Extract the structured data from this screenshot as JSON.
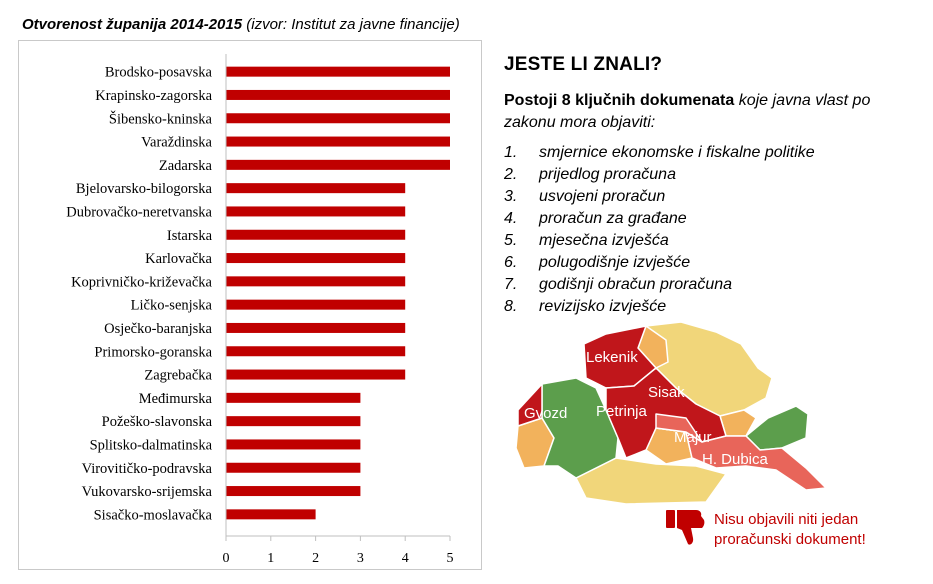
{
  "header": {
    "title": "Otvorenost županija 2014-2015",
    "source": "(izvor: Institut za javne financije)"
  },
  "chart_data": {
    "type": "bar",
    "orientation": "horizontal",
    "categories": [
      "Brodsko-posavska",
      "Krapinsko-zagorska",
      "Šibensko-kninska",
      "Varaždinska",
      "Zadarska",
      "Bjelovarsko-bilogorska",
      "Dubrovačko-neretvanska",
      "Istarska",
      "Karlovačka",
      "Koprivničko-križevačka",
      "Ličko-senjska",
      "Osječko-baranjska",
      "Primorsko-goranska",
      "Zagrebačka",
      "Međimurska",
      "Požeško-slavonska",
      "Splitsko-dalmatinska",
      "Virovitičko-podravska",
      "Vukovarsko-srijemska",
      "Sisačko-moslavačka"
    ],
    "values": [
      5,
      5,
      5,
      5,
      5,
      4,
      4,
      4,
      4,
      4,
      4,
      4,
      4,
      4,
      3,
      3,
      3,
      3,
      3,
      2
    ],
    "xlim": [
      0,
      5
    ],
    "xticks": [
      "0",
      "1",
      "2",
      "3",
      "4",
      "5"
    ],
    "grid": false,
    "bar_color": "#c00000"
  },
  "info": {
    "heading": "JESTE LI ZNALI?",
    "intro_bold": "Postoji 8 ključnih dokumenata",
    "intro_italic": " koje javna vlast po zakonu mora objaviti:",
    "documents": [
      {
        "num": "1.",
        "text": "smjernice ekonomske i fiskalne politike"
      },
      {
        "num": "2.",
        "text": "prijedlog proračuna"
      },
      {
        "num": "3.",
        "text": "usvojeni proračun"
      },
      {
        "num": "4.",
        "text": "proračun za građane"
      },
      {
        "num": "5.",
        "text": "mjesečna izvješća"
      },
      {
        "num": "6.",
        "text": "polugodišnje izvješće"
      },
      {
        "num": "7.",
        "text": "godišnji obračun proračuna"
      },
      {
        "num": "8.",
        "text": "revizijsko izvješće"
      }
    ]
  },
  "map": {
    "labels": {
      "lekenik": "Lekenik",
      "sisak": "Sisak",
      "gvozd": "Gvozd",
      "petrinja": "Petrinja",
      "majur": "Majur",
      "dubica": "H. Dubica"
    },
    "colors": {
      "red": "#c0161b",
      "salmon": "#e8655a",
      "green": "#5c9e4c",
      "orange": "#f2b25c",
      "yellow": "#f1d67a"
    }
  },
  "note": {
    "line1": "Nisu objavili niti jedan",
    "line2": "proračunski dokument!",
    "icon": "thumbs-down-icon",
    "color": "#c00000"
  }
}
